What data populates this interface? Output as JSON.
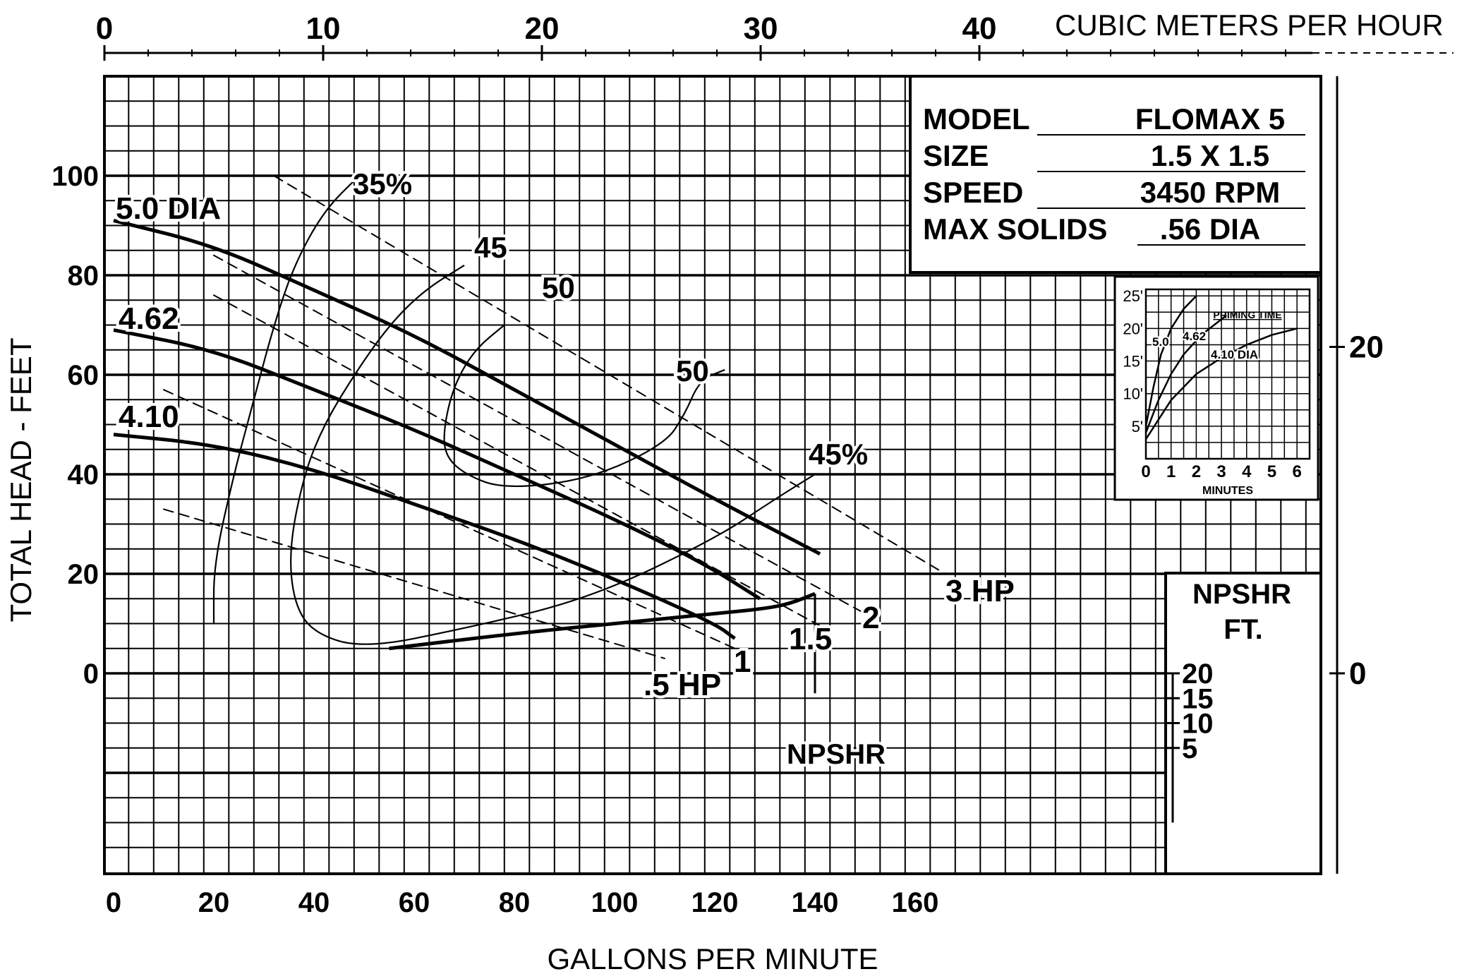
{
  "chart_data": {
    "type": "line",
    "title": "",
    "xlabel": "GALLONS PER MINUTE",
    "ylabel": "TOTAL HEAD - FEET",
    "xlim": [
      0,
      240
    ],
    "ylim": [
      -40,
      120
    ],
    "x_ticks": [
      "0",
      "20",
      "40",
      "60",
      "80",
      "100",
      "120",
      "140",
      "160"
    ],
    "y_ticks": [
      "0",
      "20",
      "40",
      "60",
      "80",
      "100"
    ],
    "x2label": "CUBIC METERS PER HOUR",
    "x2_ticks": [
      "0",
      "10",
      "20",
      "30",
      "40"
    ],
    "y2_ticks": [
      "0",
      "20"
    ],
    "grid": true,
    "info_box": {
      "rows": [
        {
          "key": "MODEL",
          "value": "FLOMAX 5"
        },
        {
          "key": "SIZE",
          "value": "1.5 X 1.5"
        },
        {
          "key": "SPEED",
          "value": "3450 RPM"
        },
        {
          "key": "MAX SOLIDS",
          "value": ".56 DIA"
        }
      ]
    },
    "head_curves": [
      {
        "name": "5.0 DIA",
        "points": [
          [
            0,
            91
          ],
          [
            20,
            86
          ],
          [
            40,
            77
          ],
          [
            60,
            68
          ],
          [
            80,
            57
          ],
          [
            100,
            46
          ],
          [
            120,
            35
          ],
          [
            141,
            24
          ]
        ]
      },
      {
        "name": "4.62",
        "points": [
          [
            0,
            69
          ],
          [
            20,
            65
          ],
          [
            40,
            57
          ],
          [
            60,
            49
          ],
          [
            80,
            40
          ],
          [
            100,
            31
          ],
          [
            118,
            22
          ],
          [
            129,
            15
          ]
        ]
      },
      {
        "name": "4.10",
        "points": [
          [
            0,
            48
          ],
          [
            20,
            46
          ],
          [
            40,
            41
          ],
          [
            60,
            34
          ],
          [
            80,
            27
          ],
          [
            100,
            19
          ],
          [
            120,
            10
          ],
          [
            124,
            7
          ]
        ]
      }
    ],
    "hp_lines": [
      {
        "name": ".5 HP",
        "points": [
          [
            10,
            33
          ],
          [
            110,
            3
          ]
        ]
      },
      {
        "name": "1",
        "points": [
          [
            10,
            57
          ],
          [
            124,
            5
          ]
        ]
      },
      {
        "name": "1.5",
        "points": [
          [
            20,
            76
          ],
          [
            142,
            9
          ]
        ]
      },
      {
        "name": "2",
        "points": [
          [
            20,
            84
          ],
          [
            150,
            12
          ]
        ]
      },
      {
        "name": "3 HP",
        "points": [
          [
            32,
            100
          ],
          [
            166,
            20
          ]
        ]
      }
    ],
    "efficiency_curves": [
      {
        "name": "35%",
        "points": [
          [
            20,
            10
          ],
          [
            20,
            22
          ],
          [
            24,
            40
          ],
          [
            28,
            55
          ],
          [
            32,
            70
          ],
          [
            36,
            82
          ],
          [
            42,
            93
          ],
          [
            49,
            100
          ]
        ]
      },
      {
        "name": "45",
        "points": [
          [
            70,
            82
          ],
          [
            62,
            77
          ],
          [
            55,
            70
          ],
          [
            48,
            60
          ],
          [
            42,
            50
          ],
          [
            38,
            40
          ],
          [
            35,
            25
          ],
          [
            36,
            14
          ],
          [
            40,
            8
          ],
          [
            50,
            5
          ],
          [
            70,
            9
          ],
          [
            95,
            15
          ],
          [
            120,
            27
          ],
          [
            132,
            35
          ],
          [
            140,
            40
          ]
        ]
      },
      {
        "name": "50",
        "points": [
          [
            78,
            70
          ],
          [
            72,
            65
          ],
          [
            68,
            58
          ],
          [
            66,
            50
          ],
          [
            66,
            44
          ],
          [
            70,
            40
          ],
          [
            78,
            37
          ],
          [
            95,
            39
          ],
          [
            110,
            46
          ],
          [
            114,
            52
          ],
          [
            117,
            59
          ],
          [
            122,
            61
          ]
        ]
      },
      {
        "name": "45%",
        "points": [
          [
            140,
            40
          ]
        ]
      }
    ],
    "npshr": {
      "label": "NPSHR",
      "axis_title": "NPSHR FT.",
      "axis_ticks": [
        "5",
        "10",
        "15",
        "20"
      ],
      "points": [
        [
          55,
          5
        ],
        [
          80,
          8
        ],
        [
          100,
          10
        ],
        [
          120,
          12
        ],
        [
          130,
          13
        ],
        [
          135,
          14
        ],
        [
          140,
          16
        ]
      ]
    },
    "priming_time": {
      "title": "PRIMING TIME",
      "xlabel": "MINUTES",
      "x_ticks": [
        "0",
        "1",
        "2",
        "3",
        "4",
        "5",
        "6"
      ],
      "y_ticks": [
        "5'",
        "10'",
        "15'",
        "20'",
        "25'"
      ],
      "xlim": [
        0,
        6.5
      ],
      "ylim": [
        0,
        26
      ],
      "series": [
        {
          "name": "5.0",
          "points": [
            [
              0,
              5
            ],
            [
              0.3,
              11
            ],
            [
              0.6,
              16
            ],
            [
              1.0,
              20
            ],
            [
              1.5,
              23
            ],
            [
              2.0,
              25
            ]
          ]
        },
        {
          "name": "4.62",
          "points": [
            [
              0,
              4
            ],
            [
              0.5,
              9
            ],
            [
              1.0,
              13
            ],
            [
              1.5,
              16
            ],
            [
              2.2,
              19
            ],
            [
              3.2,
              22
            ]
          ]
        },
        {
          "name": "4.10 DIA",
          "points": [
            [
              0,
              3
            ],
            [
              1.0,
              9
            ],
            [
              2.0,
              13
            ],
            [
              3.0,
              15.5
            ],
            [
              4.0,
              17.5
            ],
            [
              5.0,
              19
            ],
            [
              6.0,
              20
            ]
          ]
        }
      ]
    }
  }
}
